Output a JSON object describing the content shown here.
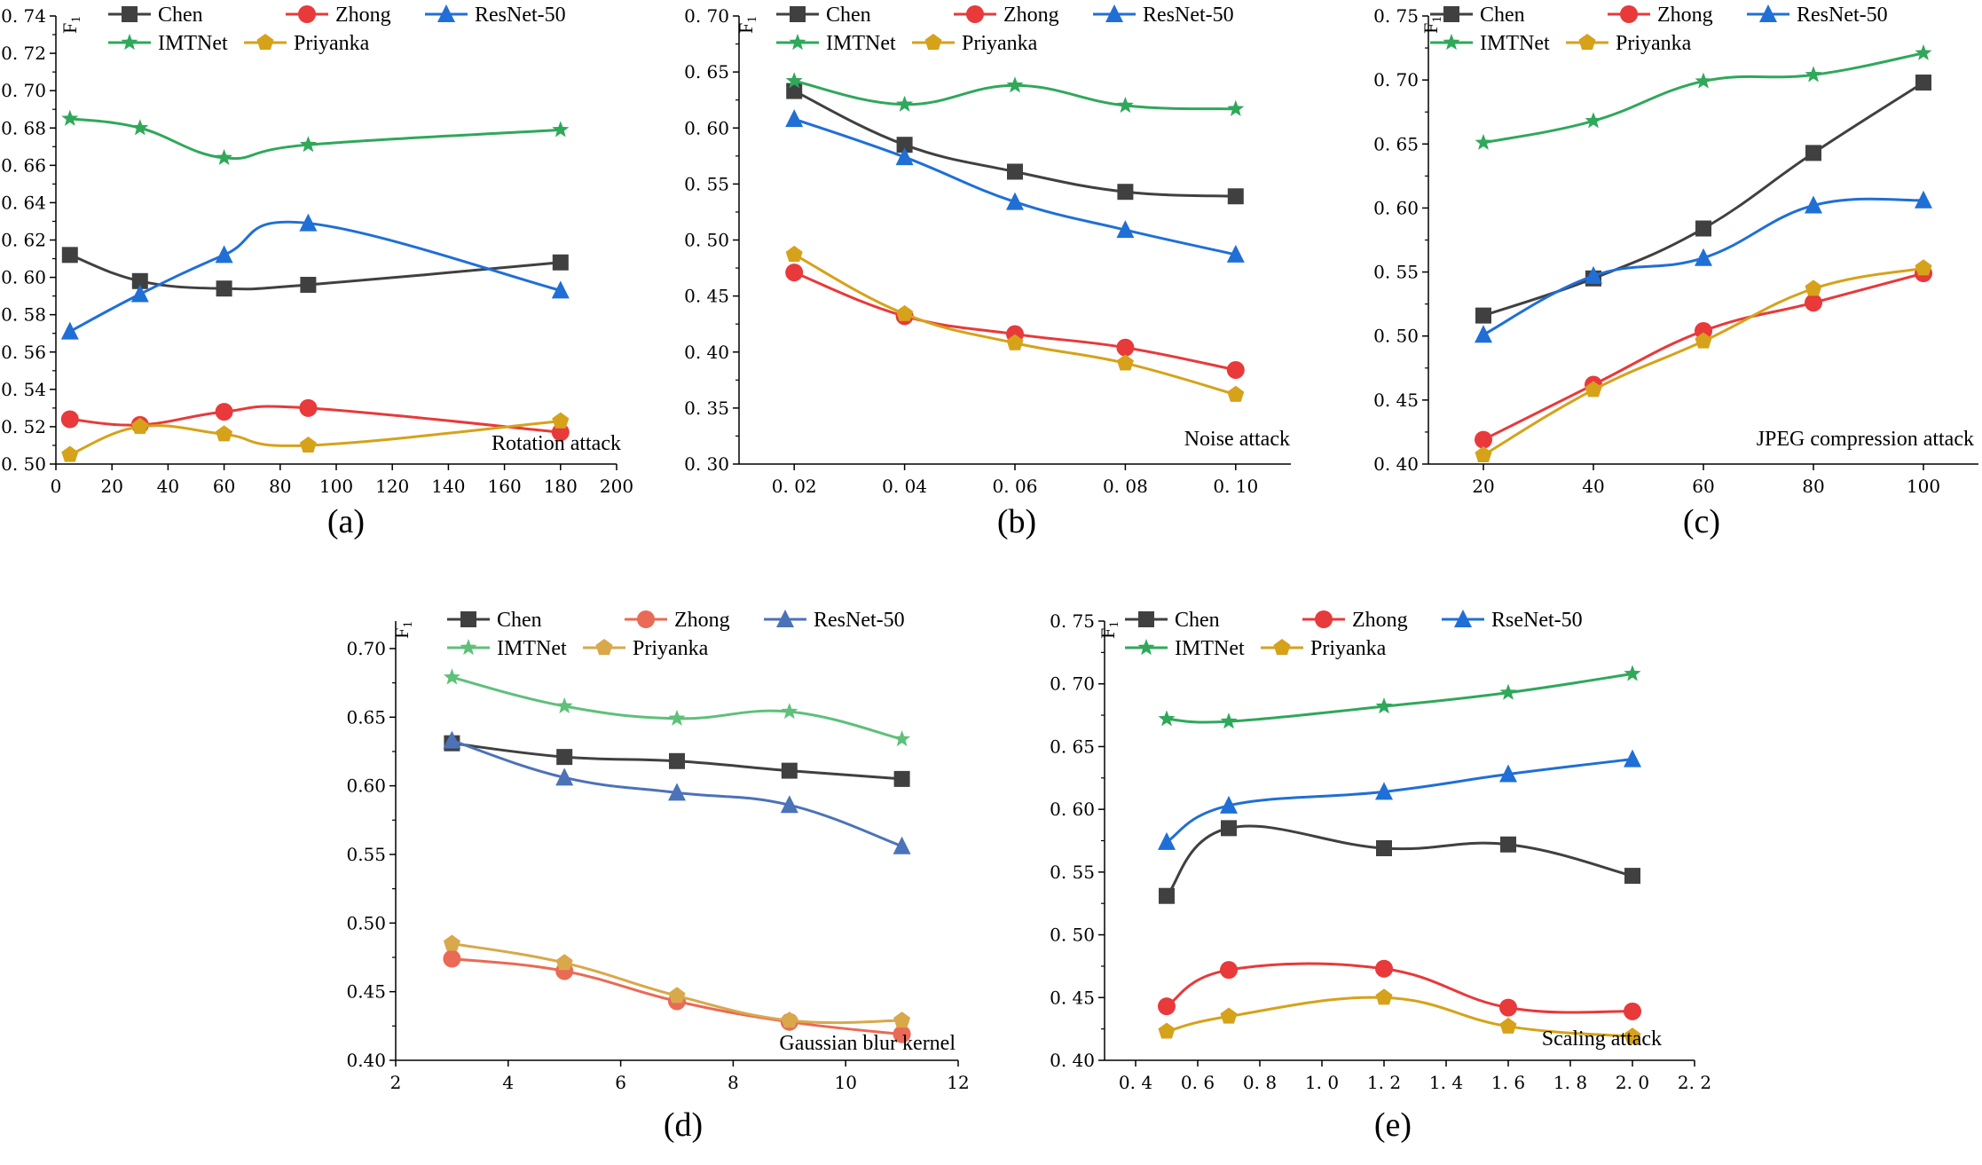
{
  "colors": {
    "Chen": "#404040",
    "Zhong": "#e8393b",
    "ResNet-50": "#1f6fd6",
    "IMTNet": "#2fa85a",
    "Priyanka": "#d6a21a",
    "d_ResNet": "#4c72b8",
    "d_Zhong": "#ea6a55",
    "d_IMTNet": "#5fc07a",
    "d_Priyanka": "#d9a84a"
  },
  "chart_data": [
    {
      "type": "line",
      "panel": "a",
      "caption": "(a)",
      "ylabel": "F1",
      "annotation": "Rotation attack",
      "xlim": [
        0,
        200
      ],
      "ylim": [
        0.5,
        0.74
      ],
      "xticks": [
        "0",
        "20",
        "40",
        "60",
        "80",
        "100",
        "120",
        "140",
        "160",
        "180",
        "200"
      ],
      "yticks": [
        "0.50",
        "0.52",
        "0.54",
        "0.56",
        "0.58",
        "0.60",
        "0.62",
        "0.64",
        "0.66",
        "0.68",
        "0.70",
        "0.72",
        "0.74"
      ],
      "series": [
        {
          "name": "Chen",
          "marker": "square",
          "x": [
            5,
            30,
            60,
            90,
            180
          ],
          "values": [
            0.612,
            0.598,
            0.594,
            0.596,
            0.608
          ]
        },
        {
          "name": "Zhong",
          "marker": "circle",
          "x": [
            5,
            30,
            60,
            90,
            180
          ],
          "values": [
            0.524,
            0.521,
            0.528,
            0.53,
            0.517
          ]
        },
        {
          "name": "ResNet-50",
          "marker": "triangle",
          "x": [
            5,
            30,
            60,
            90,
            180
          ],
          "values": [
            0.571,
            0.591,
            0.612,
            0.629,
            0.593
          ]
        },
        {
          "name": "IMTNet",
          "marker": "star",
          "x": [
            5,
            30,
            60,
            90,
            180
          ],
          "values": [
            0.685,
            0.68,
            0.664,
            0.671,
            0.679
          ]
        },
        {
          "name": "Priyanka",
          "marker": "pentagon",
          "x": [
            5,
            30,
            60,
            90,
            180
          ],
          "values": [
            0.505,
            0.52,
            0.516,
            0.51,
            0.523
          ]
        }
      ]
    },
    {
      "type": "line",
      "panel": "b",
      "caption": "(b)",
      "ylabel": "F1",
      "annotation": "Noise attack",
      "xlim": [
        0.01,
        0.11
      ],
      "ylim": [
        0.3,
        0.7
      ],
      "xticks": [
        "0. 02",
        "0. 04",
        "0. 06",
        "0. 08",
        "0. 10"
      ],
      "yticks": [
        "0.30",
        "0.35",
        "0.40",
        "0.45",
        "0.50",
        "0.55",
        "0.60",
        "0.65",
        "0.70"
      ],
      "series": [
        {
          "name": "Chen",
          "marker": "square",
          "x": [
            0.02,
            0.04,
            0.06,
            0.08,
            0.1
          ],
          "values": [
            0.633,
            0.585,
            0.561,
            0.543,
            0.539
          ]
        },
        {
          "name": "Zhong",
          "marker": "circle",
          "x": [
            0.02,
            0.04,
            0.06,
            0.08,
            0.1
          ],
          "values": [
            0.471,
            0.432,
            0.416,
            0.404,
            0.384
          ]
        },
        {
          "name": "ResNet-50",
          "marker": "triangle",
          "x": [
            0.02,
            0.04,
            0.06,
            0.08,
            0.1
          ],
          "values": [
            0.608,
            0.574,
            0.534,
            0.509,
            0.487
          ]
        },
        {
          "name": "IMTNet",
          "marker": "star",
          "x": [
            0.02,
            0.04,
            0.06,
            0.08,
            0.1
          ],
          "values": [
            0.642,
            0.621,
            0.638,
            0.62,
            0.617
          ]
        },
        {
          "name": "Priyanka",
          "marker": "pentagon",
          "x": [
            0.02,
            0.04,
            0.06,
            0.08,
            0.1
          ],
          "values": [
            0.487,
            0.434,
            0.408,
            0.39,
            0.362
          ]
        }
      ]
    },
    {
      "type": "line",
      "panel": "c",
      "caption": "(c)",
      "ylabel": "F1",
      "annotation": "JPEG compression attack",
      "xlim": [
        10,
        110
      ],
      "ylim": [
        0.4,
        0.75
      ],
      "xticks": [
        "20",
        "40",
        "60",
        "80",
        "100"
      ],
      "yticks": [
        "0.40",
        "0.45",
        "0.50",
        "0.55",
        "0.60",
        "0.65",
        "0.70",
        "0.75"
      ],
      "series": [
        {
          "name": "Chen",
          "marker": "square",
          "x": [
            20,
            40,
            60,
            80,
            100
          ],
          "values": [
            0.516,
            0.545,
            0.584,
            0.643,
            0.698
          ]
        },
        {
          "name": "Zhong",
          "marker": "circle",
          "x": [
            20,
            40,
            60,
            80,
            100
          ],
          "values": [
            0.419,
            0.462,
            0.504,
            0.526,
            0.549
          ]
        },
        {
          "name": "ResNet-50",
          "marker": "triangle",
          "x": [
            20,
            40,
            60,
            80,
            100
          ],
          "values": [
            0.501,
            0.547,
            0.561,
            0.602,
            0.606
          ]
        },
        {
          "name": "IMTNet",
          "marker": "star",
          "x": [
            20,
            40,
            60,
            80,
            100
          ],
          "values": [
            0.651,
            0.668,
            0.699,
            0.704,
            0.721
          ]
        },
        {
          "name": "Priyanka",
          "marker": "pentagon",
          "x": [
            20,
            40,
            60,
            80,
            100
          ],
          "values": [
            0.407,
            0.458,
            0.496,
            0.537,
            0.553
          ]
        }
      ]
    },
    {
      "type": "line",
      "panel": "d",
      "caption": "(d)",
      "ylabel": "F1",
      "annotation": "Gaussian blur kernel",
      "xlim": [
        2,
        12
      ],
      "ylim": [
        0.4,
        0.72
      ],
      "xticks": [
        "2",
        "4",
        "6",
        "8",
        "10",
        "12"
      ],
      "yticks": [
        "0.40",
        "0.45",
        "0.50",
        "0.55",
        "0.60",
        "0.65",
        "0.70"
      ],
      "series": [
        {
          "name": "Chen",
          "marker": "square",
          "x": [
            3,
            5,
            7,
            9,
            11
          ],
          "values": [
            0.631,
            0.621,
            0.618,
            0.611,
            0.605
          ]
        },
        {
          "name": "Zhong",
          "marker": "circle",
          "x": [
            3,
            5,
            7,
            9,
            11
          ],
          "values": [
            0.474,
            0.465,
            0.443,
            0.428,
            0.419
          ]
        },
        {
          "name": "ResNet-50",
          "marker": "triangle",
          "x": [
            3,
            5,
            7,
            9,
            11
          ],
          "values": [
            0.633,
            0.606,
            0.595,
            0.586,
            0.556
          ]
        },
        {
          "name": "IMTNet",
          "marker": "star",
          "x": [
            3,
            5,
            7,
            9,
            11
          ],
          "values": [
            0.679,
            0.658,
            0.649,
            0.654,
            0.634
          ]
        },
        {
          "name": "Priyanka",
          "marker": "pentagon",
          "x": [
            3,
            5,
            7,
            9,
            11
          ],
          "values": [
            0.485,
            0.471,
            0.447,
            0.429,
            0.429
          ]
        }
      ]
    },
    {
      "type": "line",
      "panel": "e",
      "caption": "(e)",
      "ylabel": "F1",
      "annotation": "Scaling attack",
      "xlim": [
        0.3,
        2.2
      ],
      "ylim": [
        0.4,
        0.75
      ],
      "xticks": [
        "0. 4",
        "0. 6",
        "0. 8",
        "1. 0",
        "1. 2",
        "1. 4",
        "1. 6",
        "1. 8",
        "2. 0",
        "2. 2"
      ],
      "yticks": [
        "0.40",
        "0.45",
        "0.50",
        "0.55",
        "0.60",
        "0.65",
        "0.70",
        "0.75"
      ],
      "series": [
        {
          "name": "Chen",
          "marker": "square",
          "x": [
            0.5,
            0.7,
            1.2,
            1.6,
            2.0
          ],
          "values": [
            0.531,
            0.585,
            0.569,
            0.572,
            0.547
          ]
        },
        {
          "name": "Zhong",
          "marker": "circle",
          "x": [
            0.5,
            0.7,
            1.2,
            1.6,
            2.0
          ],
          "values": [
            0.443,
            0.472,
            0.473,
            0.442,
            0.439
          ]
        },
        {
          "name": "RseNet-50",
          "marker": "triangle",
          "x": [
            0.5,
            0.7,
            1.2,
            1.6,
            2.0
          ],
          "values": [
            0.574,
            0.603,
            0.614,
            0.628,
            0.64
          ]
        },
        {
          "name": "IMTNet",
          "marker": "star",
          "x": [
            0.5,
            0.7,
            1.2,
            1.6,
            2.0
          ],
          "values": [
            0.672,
            0.67,
            0.682,
            0.693,
            0.708
          ]
        },
        {
          "name": "Priyanka",
          "marker": "pentagon",
          "x": [
            0.5,
            0.7,
            1.2,
            1.6,
            2.0
          ],
          "values": [
            0.423,
            0.435,
            0.45,
            0.427,
            0.419
          ]
        }
      ]
    }
  ]
}
